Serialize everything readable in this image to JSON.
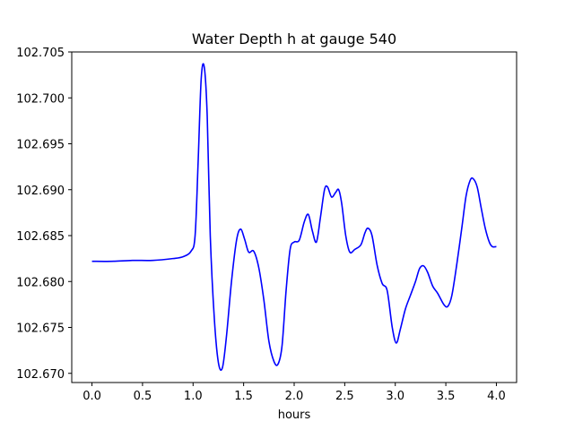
{
  "chart_data": {
    "type": "line",
    "title": "Water Depth h at gauge 540",
    "xlabel": "hours",
    "ylabel": "",
    "xlim": [
      -0.2,
      4.2
    ],
    "ylim": [
      102.669,
      102.705
    ],
    "xticks": [
      0.0,
      0.5,
      1.0,
      1.5,
      2.0,
      2.5,
      3.0,
      3.5,
      4.0
    ],
    "xtick_labels": [
      "0.0",
      "0.5",
      "1.0",
      "1.5",
      "2.0",
      "2.5",
      "3.0",
      "3.5",
      "4.0"
    ],
    "yticks": [
      102.67,
      102.675,
      102.68,
      102.685,
      102.69,
      102.695,
      102.7,
      102.705
    ],
    "ytick_labels": [
      "102.670",
      "102.675",
      "102.680",
      "102.685",
      "102.690",
      "102.695",
      "102.700",
      "102.705"
    ],
    "grid": false,
    "series": [
      {
        "color": "#0000ff",
        "points": [
          [
            0.0,
            102.6822
          ],
          [
            0.2,
            102.6822
          ],
          [
            0.4,
            102.6823
          ],
          [
            0.6,
            102.6823
          ],
          [
            0.8,
            102.6825
          ],
          [
            0.9,
            102.6827
          ],
          [
            0.98,
            102.6833
          ],
          [
            1.02,
            102.685
          ],
          [
            1.05,
            102.693
          ],
          [
            1.08,
            102.702
          ],
          [
            1.11,
            102.7034
          ],
          [
            1.14,
            102.698
          ],
          [
            1.17,
            102.685
          ],
          [
            1.21,
            102.676
          ],
          [
            1.25,
            102.6712
          ],
          [
            1.29,
            102.6706
          ],
          [
            1.33,
            102.674
          ],
          [
            1.38,
            102.68
          ],
          [
            1.43,
            102.6845
          ],
          [
            1.47,
            102.6857
          ],
          [
            1.51,
            102.6846
          ],
          [
            1.55,
            102.6832
          ],
          [
            1.6,
            102.6833
          ],
          [
            1.65,
            102.6815
          ],
          [
            1.7,
            102.678
          ],
          [
            1.75,
            102.6735
          ],
          [
            1.8,
            102.6713
          ],
          [
            1.84,
            102.671
          ],
          [
            1.88,
            102.673
          ],
          [
            1.92,
            102.679
          ],
          [
            1.96,
            102.6835
          ],
          [
            2.0,
            102.6843
          ],
          [
            2.05,
            102.6845
          ],
          [
            2.1,
            102.6865
          ],
          [
            2.14,
            102.6873
          ],
          [
            2.18,
            102.6855
          ],
          [
            2.22,
            102.6843
          ],
          [
            2.26,
            102.687
          ],
          [
            2.3,
            102.69
          ],
          [
            2.33,
            102.6903
          ],
          [
            2.37,
            102.6892
          ],
          [
            2.41,
            102.6897
          ],
          [
            2.44,
            102.69
          ],
          [
            2.47,
            102.6885
          ],
          [
            2.51,
            102.685
          ],
          [
            2.55,
            102.6832
          ],
          [
            2.6,
            102.6835
          ],
          [
            2.66,
            102.684
          ],
          [
            2.7,
            102.6853
          ],
          [
            2.73,
            102.6858
          ],
          [
            2.77,
            102.685
          ],
          [
            2.82,
            102.6818
          ],
          [
            2.87,
            102.6798
          ],
          [
            2.92,
            102.679
          ],
          [
            2.97,
            102.675
          ],
          [
            3.01,
            102.6733
          ],
          [
            3.05,
            102.6748
          ],
          [
            3.1,
            102.677
          ],
          [
            3.15,
            102.6785
          ],
          [
            3.2,
            102.68
          ],
          [
            3.24,
            102.6814
          ],
          [
            3.28,
            102.6817
          ],
          [
            3.32,
            102.681
          ],
          [
            3.37,
            102.6795
          ],
          [
            3.42,
            102.6787
          ],
          [
            3.48,
            102.6775
          ],
          [
            3.52,
            102.6773
          ],
          [
            3.56,
            102.6785
          ],
          [
            3.61,
            102.682
          ],
          [
            3.66,
            102.686
          ],
          [
            3.7,
            102.6893
          ],
          [
            3.74,
            102.691
          ],
          [
            3.77,
            102.6912
          ],
          [
            3.81,
            102.6903
          ],
          [
            3.85,
            102.688
          ],
          [
            3.89,
            102.6858
          ],
          [
            3.93,
            102.6843
          ],
          [
            3.96,
            102.6838
          ],
          [
            4.0,
            102.6838
          ]
        ]
      }
    ]
  }
}
